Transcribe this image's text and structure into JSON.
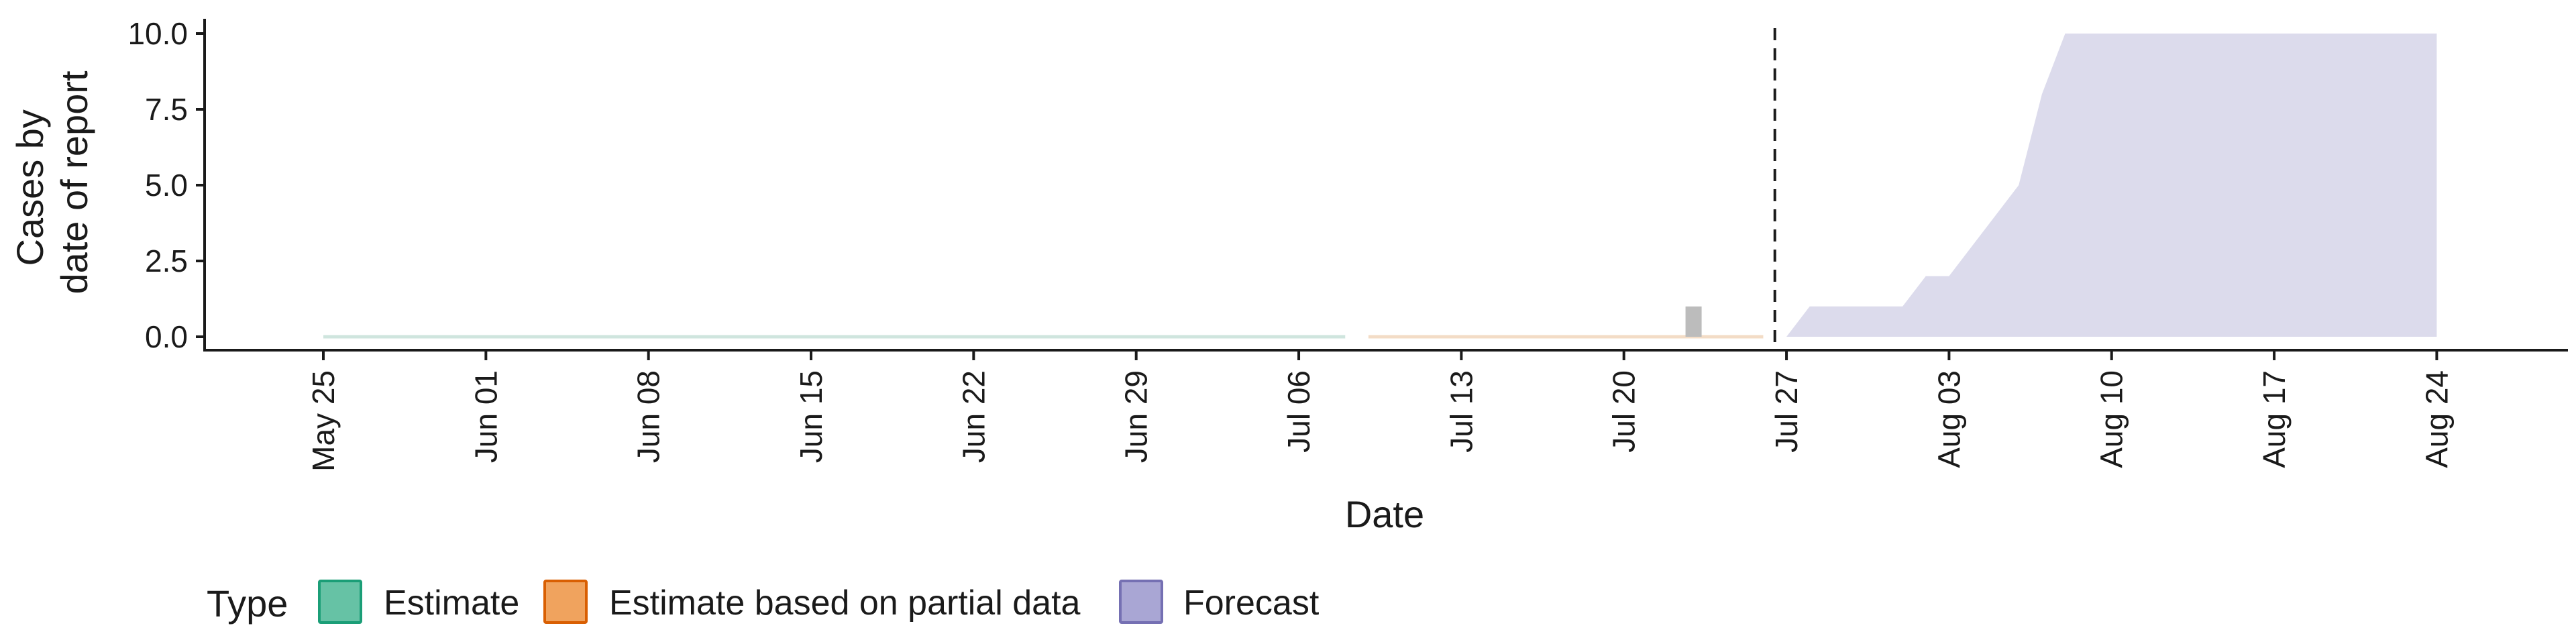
{
  "chart_data": {
    "type": "area",
    "title": "",
    "xlabel": "Date",
    "ylabel": [
      "Cases by",
      "date of report"
    ],
    "x_start": "2020-05-25",
    "x_ticks": [
      "May 25",
      "Jun 01",
      "Jun 08",
      "Jun 15",
      "Jun 22",
      "Jun 29",
      "Jul 06",
      "Jul 13",
      "Jul 20",
      "Jul 27",
      "Aug 03",
      "Aug 10",
      "Aug 17",
      "Aug 24"
    ],
    "ylim": [
      0,
      10
    ],
    "y_ticks": [
      "0.0",
      "2.5",
      "5.0",
      "7.5",
      "10.0"
    ],
    "grid": false,
    "legend_position": "bottom-left",
    "legend_title": "Type",
    "legend": [
      {
        "label": "Estimate",
        "fill": "#66c2a5",
        "stroke": "#1b9e77"
      },
      {
        "label": "Estimate based on partial data",
        "fill": "#f0a35e",
        "stroke": "#d95f02"
      },
      {
        "label": "Forecast",
        "fill": "#a9a6d4",
        "stroke": "#7570b3"
      }
    ],
    "report_date": "2020-07-26",
    "reported_cases": [
      {
        "date": "2020-07-23",
        "value": 1
      }
    ],
    "series": [
      {
        "name": "Estimate",
        "color": "#cfe5de",
        "points": [
          [
            "2020-05-25",
            0,
            0
          ],
          [
            "2020-07-08",
            0,
            0
          ]
        ]
      },
      {
        "name": "Estimate based on partial data",
        "color": "#f3dcc6",
        "points": [
          [
            "2020-07-09",
            0,
            0
          ],
          [
            "2020-07-26",
            0,
            0
          ]
        ]
      },
      {
        "name": "Forecast",
        "color": "#dcdbec",
        "points": [
          [
            "2020-07-27",
            0,
            0
          ],
          [
            "2020-07-28",
            0,
            1
          ],
          [
            "2020-07-29",
            0,
            1
          ],
          [
            "2020-07-30",
            0,
            1
          ],
          [
            "2020-07-31",
            0,
            1
          ],
          [
            "2020-08-01",
            0,
            1
          ],
          [
            "2020-08-02",
            0,
            2
          ],
          [
            "2020-08-03",
            0,
            2
          ],
          [
            "2020-08-04",
            0,
            3
          ],
          [
            "2020-08-05",
            0,
            4
          ],
          [
            "2020-08-06",
            0,
            5
          ],
          [
            "2020-08-07",
            0,
            8
          ],
          [
            "2020-08-08",
            0,
            10
          ],
          [
            "2020-08-24",
            0,
            10
          ]
        ]
      }
    ]
  }
}
